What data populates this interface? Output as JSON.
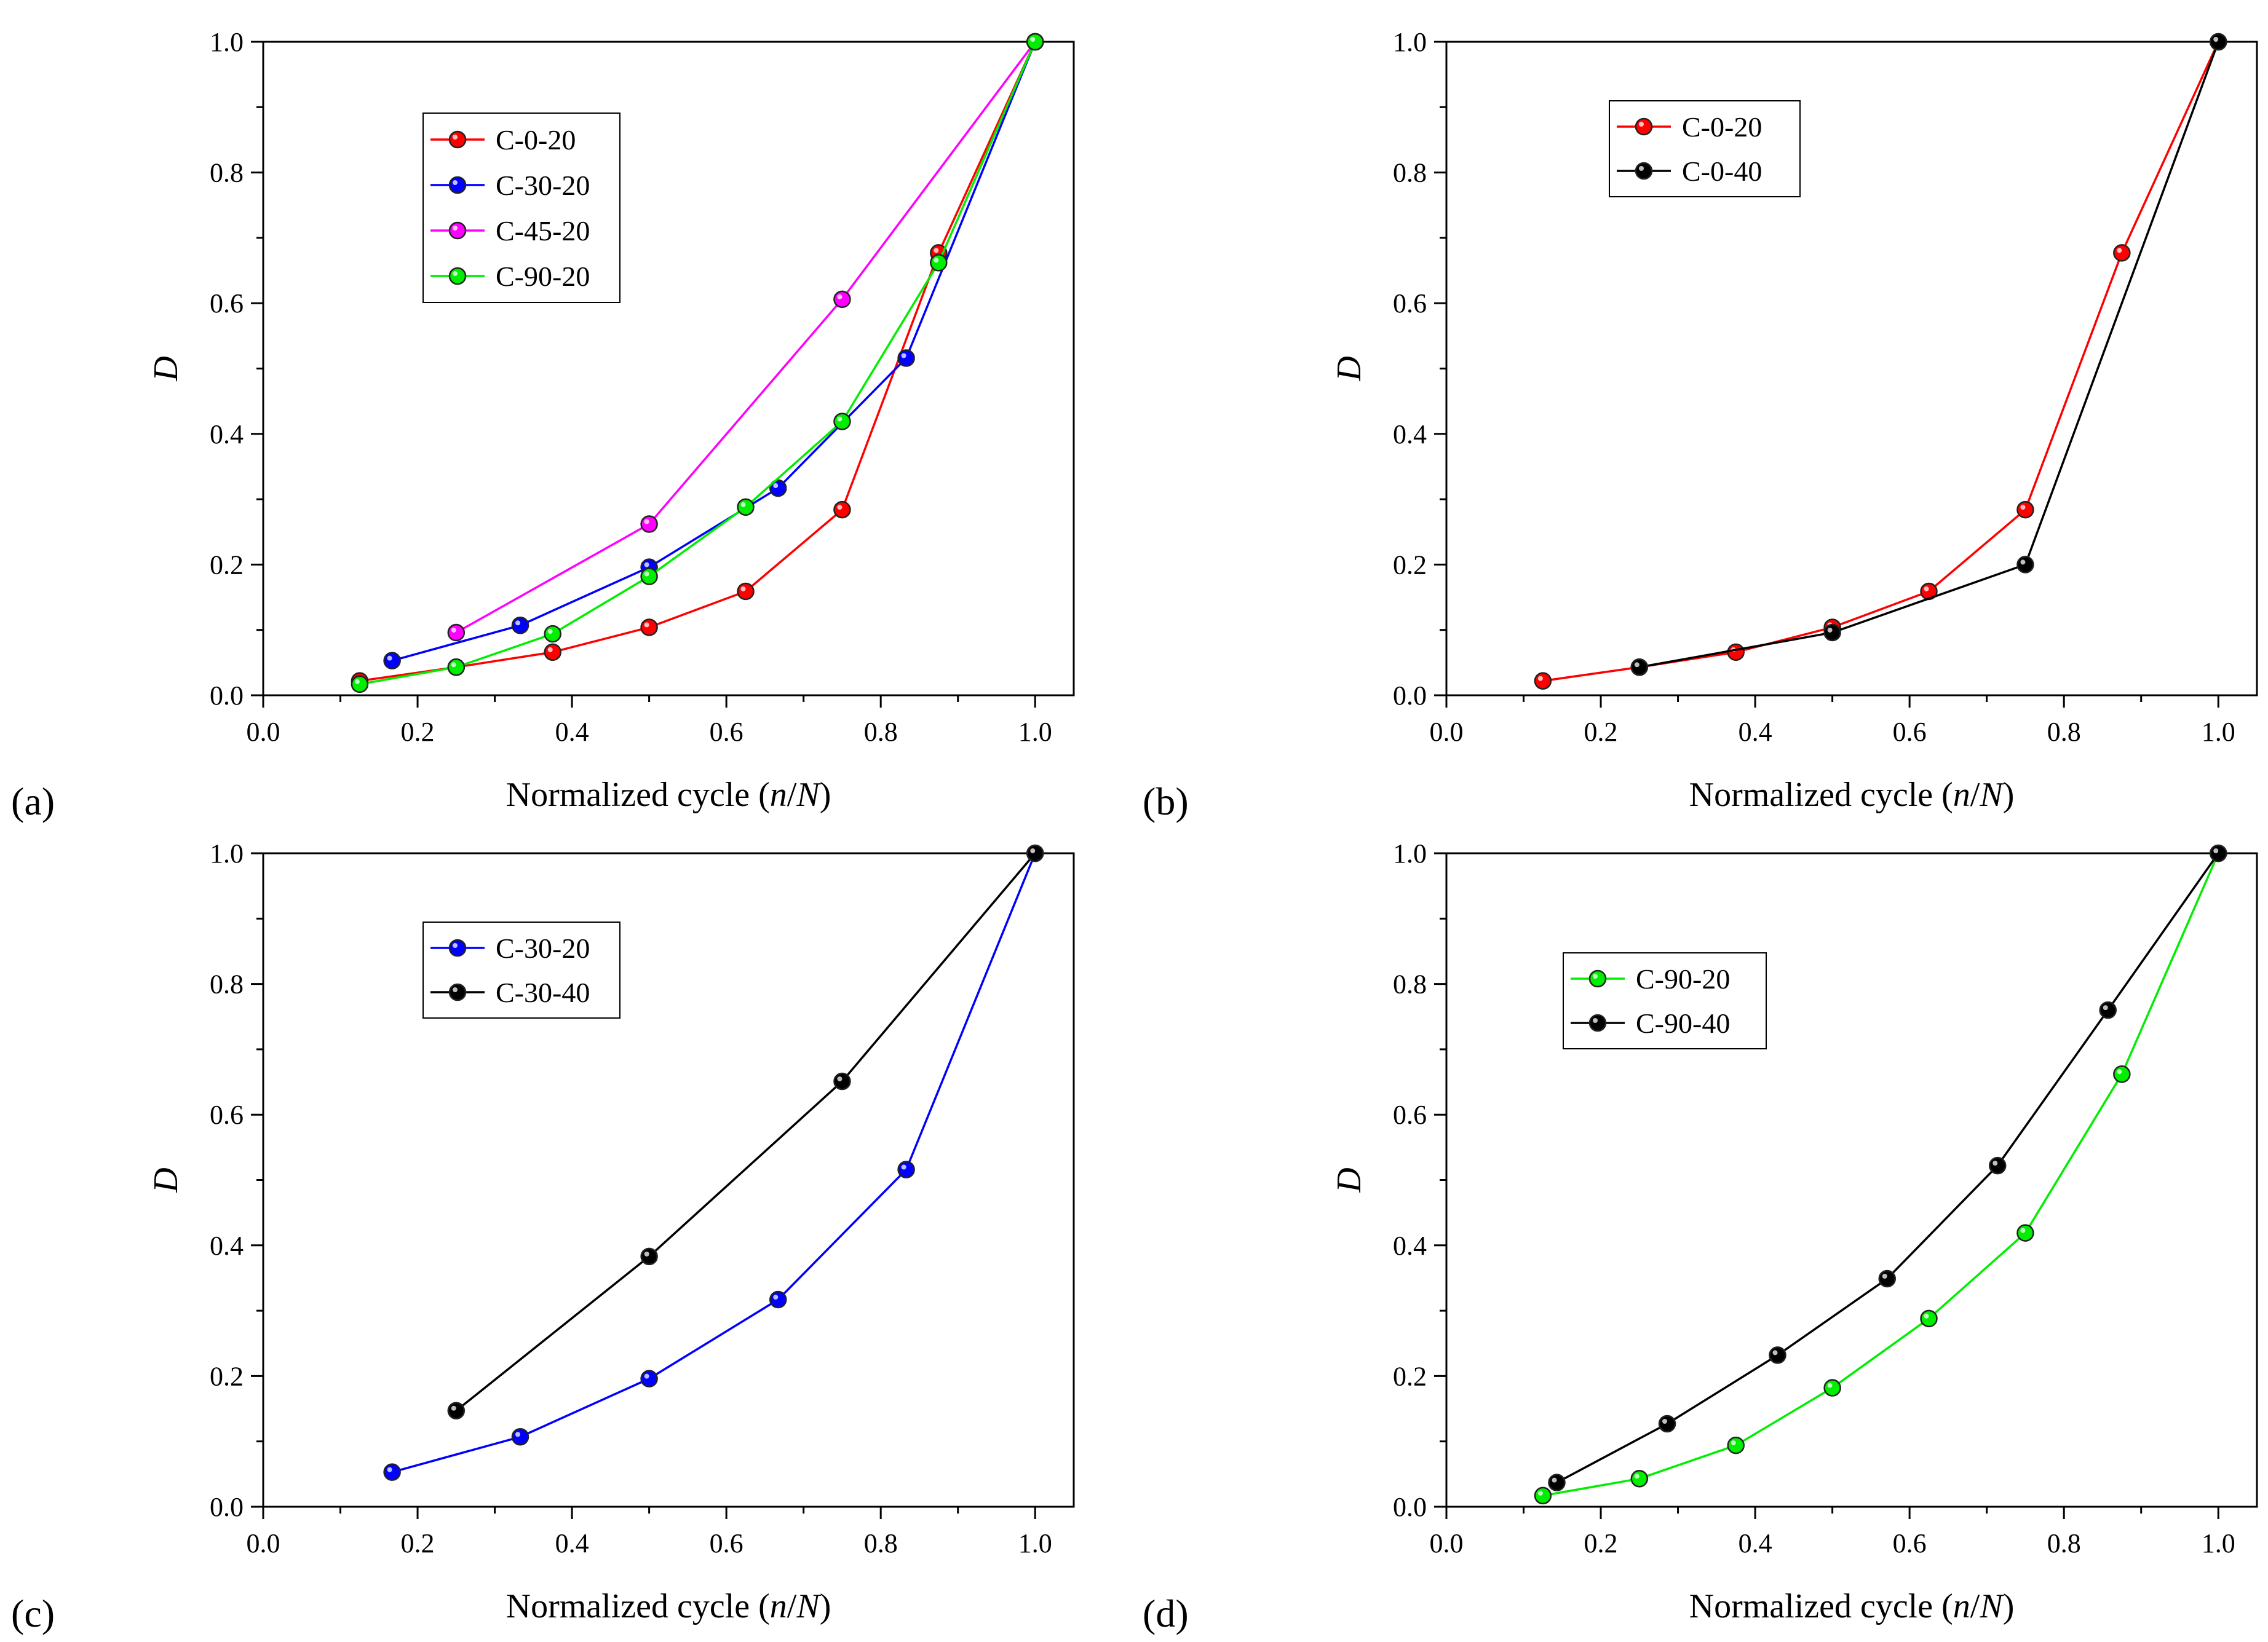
{
  "chart_data": [
    {
      "panel": "(a)",
      "type": "line",
      "xlabel_prefix": "Normalized cycle (",
      "xlabel_var_n": "n",
      "xlabel_slash": "/",
      "xlabel_var_N": "N",
      "xlabel_suffix": ")",
      "ylabel": "D",
      "xlim": [
        0.0,
        1.05
      ],
      "ylim": [
        0.0,
        1.0
      ],
      "xticks": [
        "0.0",
        "0.2",
        "0.4",
        "0.6",
        "0.8",
        "1.0"
      ],
      "yticks": [
        "0.0",
        "0.2",
        "0.4",
        "0.6",
        "0.8",
        "1.0"
      ],
      "legend_position": "upper-left",
      "series": [
        {
          "name": "C-0-20",
          "color": "#ff0000",
          "x": [
            0.125,
            0.25,
            0.375,
            0.5,
            0.625,
            0.75,
            0.875,
            1.0
          ],
          "y": [
            0.022,
            0.043,
            0.066,
            0.104,
            0.159,
            0.284,
            0.677,
            1.0
          ]
        },
        {
          "name": "C-30-20",
          "color": "#0000ff",
          "x": [
            0.167,
            0.333,
            0.5,
            0.667,
            0.833,
            1.0
          ],
          "y": [
            0.053,
            0.107,
            0.196,
            0.317,
            0.516,
            1.0
          ]
        },
        {
          "name": "C-45-20",
          "color": "#ff00ff",
          "x": [
            0.25,
            0.5,
            0.75,
            1.0
          ],
          "y": [
            0.096,
            0.262,
            0.606,
            1.0
          ]
        },
        {
          "name": "C-90-20",
          "color": "#00ee00",
          "x": [
            0.125,
            0.25,
            0.375,
            0.5,
            0.625,
            0.75,
            0.875,
            1.0
          ],
          "y": [
            0.017,
            0.043,
            0.094,
            0.182,
            0.288,
            0.419,
            0.662,
            1.0
          ]
        }
      ]
    },
    {
      "panel": "(b)",
      "type": "line",
      "xlabel_prefix": "Normalized cycle (",
      "xlabel_var_n": "n",
      "xlabel_slash": "/",
      "xlabel_var_N": "N",
      "xlabel_suffix": ")",
      "ylabel": "D",
      "xlim": [
        0.0,
        1.05
      ],
      "ylim": [
        0.0,
        1.0
      ],
      "xticks": [
        "0.0",
        "0.2",
        "0.4",
        "0.6",
        "0.8",
        "1.0"
      ],
      "yticks": [
        "0.0",
        "0.2",
        "0.4",
        "0.6",
        "0.8",
        "1.0"
      ],
      "legend_position": "upper-left",
      "series": [
        {
          "name": "C-0-20",
          "color": "#ff0000",
          "x": [
            0.125,
            0.25,
            0.375,
            0.5,
            0.625,
            0.75,
            0.875,
            1.0
          ],
          "y": [
            0.022,
            0.043,
            0.066,
            0.104,
            0.159,
            0.284,
            0.677,
            1.0
          ]
        },
        {
          "name": "C-0-40",
          "color": "#000000",
          "x": [
            0.25,
            0.5,
            0.75,
            1.0
          ],
          "y": [
            0.043,
            0.096,
            0.2,
            1.0
          ]
        }
      ]
    },
    {
      "panel": "(c)",
      "type": "line",
      "xlabel_prefix": "Normalized cycle (",
      "xlabel_var_n": "n",
      "xlabel_slash": "/",
      "xlabel_var_N": "N",
      "xlabel_suffix": ")",
      "ylabel": "D",
      "xlim": [
        0.0,
        1.05
      ],
      "ylim": [
        0.0,
        1.0
      ],
      "xticks": [
        "0.0",
        "0.2",
        "0.4",
        "0.6",
        "0.8",
        "1.0"
      ],
      "yticks": [
        "0.0",
        "0.2",
        "0.4",
        "0.6",
        "0.8",
        "1.0"
      ],
      "legend_position": "upper-left",
      "series": [
        {
          "name": "C-30-20",
          "color": "#0000ff",
          "x": [
            0.167,
            0.333,
            0.5,
            0.667,
            0.833,
            1.0
          ],
          "y": [
            0.053,
            0.107,
            0.196,
            0.317,
            0.516,
            1.0
          ]
        },
        {
          "name": "C-30-40",
          "color": "#000000",
          "x": [
            0.25,
            0.5,
            0.75,
            1.0
          ],
          "y": [
            0.147,
            0.383,
            0.651,
            1.0
          ]
        }
      ]
    },
    {
      "panel": "(d)",
      "type": "line",
      "xlabel_prefix": "Normalized cycle (",
      "xlabel_var_n": "n",
      "xlabel_slash": "/",
      "xlabel_var_N": "N",
      "xlabel_suffix": ")",
      "ylabel": "D",
      "xlim": [
        0.0,
        1.05
      ],
      "ylim": [
        0.0,
        1.0
      ],
      "xticks": [
        "0.0",
        "0.2",
        "0.4",
        "0.6",
        "0.8",
        "1.0"
      ],
      "yticks": [
        "0.0",
        "0.2",
        "0.4",
        "0.6",
        "0.8",
        "1.0"
      ],
      "legend_position": "upper-left",
      "series": [
        {
          "name": "C-90-20",
          "color": "#00ee00",
          "x": [
            0.125,
            0.25,
            0.375,
            0.5,
            0.625,
            0.75,
            0.875,
            1.0
          ],
          "y": [
            0.017,
            0.043,
            0.094,
            0.182,
            0.288,
            0.419,
            0.662,
            1.0
          ]
        },
        {
          "name": "C-90-40",
          "color": "#000000",
          "x": [
            0.143,
            0.286,
            0.429,
            0.571,
            0.714,
            0.857,
            1.0
          ],
          "y": [
            0.037,
            0.127,
            0.232,
            0.349,
            0.522,
            0.76,
            1.0
          ]
        }
      ]
    }
  ]
}
